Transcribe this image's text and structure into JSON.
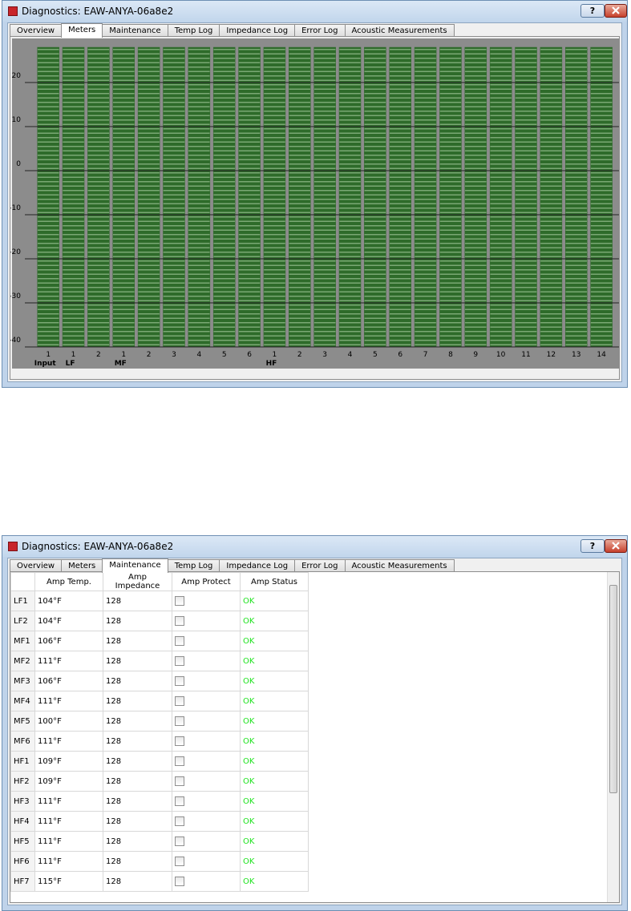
{
  "windows": [
    {
      "title": "Diagnostics: EAW-ANYA-06a8e2",
      "help": "?",
      "tabs": [
        "Overview",
        "Meters",
        "Maintenance",
        "Temp Log",
        "Impedance Log",
        "Error Log",
        "Acoustic Measurements"
      ]
    },
    {
      "title": "Diagnostics: EAW-ANYA-06a8e2",
      "help": "?",
      "tabs": [
        "Overview",
        "Meters",
        "Maintenance",
        "Temp Log",
        "Impedance Log",
        "Error Log",
        "Acoustic Measurements"
      ]
    }
  ],
  "chart_data": {
    "type": "bar",
    "categories": [
      "1",
      "1",
      "2",
      "1",
      "2",
      "3",
      "4",
      "5",
      "6",
      "1",
      "2",
      "3",
      "4",
      "5",
      "6",
      "7",
      "8",
      "9",
      "10",
      "11",
      "12",
      "13",
      "14"
    ],
    "group_labels": [
      "Input",
      "LF",
      null,
      "MF",
      null,
      null,
      null,
      null,
      null,
      "HF",
      null,
      null,
      null,
      null,
      null,
      null,
      null,
      null,
      null,
      null,
      null,
      null,
      null
    ],
    "values": [
      28,
      28,
      28,
      28,
      28,
      28,
      28,
      28,
      28,
      28,
      28,
      28,
      28,
      28,
      28,
      28,
      28,
      28,
      28,
      28,
      28,
      28,
      28
    ],
    "color": "#2e6b2a",
    "ylim": [
      -40,
      30
    ],
    "yticks": [
      -40,
      -30,
      -20,
      -10,
      0,
      10,
      20
    ],
    "grid": true
  },
  "table": {
    "columns": [
      "Amp Temp.",
      "Amp Impedance",
      "Amp Protect",
      "Amp Status"
    ],
    "rows": [
      [
        "LF1",
        "104°F",
        128,
        false,
        "OK"
      ],
      [
        "LF2",
        "104°F",
        128,
        false,
        "OK"
      ],
      [
        "MF1",
        "106°F",
        128,
        false,
        "OK"
      ],
      [
        "MF2",
        "111°F",
        128,
        false,
        "OK"
      ],
      [
        "MF3",
        "106°F",
        128,
        false,
        "OK"
      ],
      [
        "MF4",
        "111°F",
        128,
        false,
        "OK"
      ],
      [
        "MF5",
        "100°F",
        128,
        false,
        "OK"
      ],
      [
        "MF6",
        "111°F",
        128,
        false,
        "OK"
      ],
      [
        "HF1",
        "109°F",
        128,
        false,
        "OK"
      ],
      [
        "HF2",
        "109°F",
        128,
        false,
        "OK"
      ],
      [
        "HF3",
        "111°F",
        128,
        false,
        "OK"
      ],
      [
        "HF4",
        "111°F",
        128,
        false,
        "OK"
      ],
      [
        "HF5",
        "111°F",
        128,
        false,
        "OK"
      ],
      [
        "HF6",
        "111°F",
        128,
        false,
        "OK"
      ],
      [
        "HF7",
        "115°F",
        128,
        false,
        "OK"
      ]
    ]
  }
}
